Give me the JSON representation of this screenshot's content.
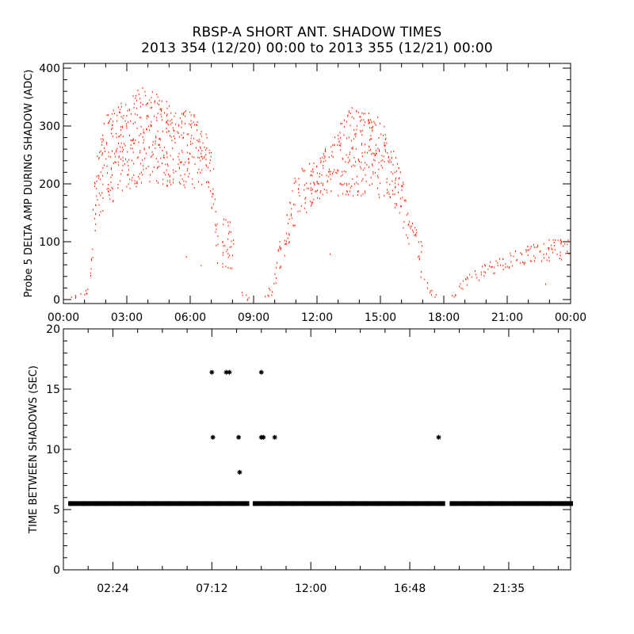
{
  "title": "RBSP-A SHORT ANT. SHADOW TIMES",
  "subtitle": "2013 354 (12/20) 00:00 to 2013 355 (12/21) 00:00",
  "colors": {
    "scatter": "#ff2200",
    "markers": "#000000",
    "axes": "#000000"
  },
  "chart_data": [
    {
      "type": "scatter",
      "ylabel": "Probe 5 DELTA AMP DURING SHADOW (ADC)",
      "xlabel": "",
      "xlim_hours": [
        0,
        24
      ],
      "ylim": [
        0,
        400
      ],
      "x_tick_labels": [
        "00:00",
        "03:00",
        "06:00",
        "09:00",
        "12:00",
        "15:00",
        "18:00",
        "21:00",
        "00:00"
      ],
      "x_tick_hours": [
        0,
        3,
        6,
        9,
        12,
        15,
        18,
        21,
        24
      ],
      "y_tick_labels": [
        "0",
        "100",
        "200",
        "300",
        "400"
      ],
      "y_tick_values": [
        0,
        100,
        200,
        300,
        400
      ],
      "grid": false,
      "segments": [
        [
          [
            0.3,
            0,
            5
          ],
          [
            0.7,
            3,
            10
          ],
          [
            1.2,
            10,
            22
          ]
        ],
        [
          [
            1.25,
            15,
            60
          ],
          [
            1.4,
            60,
            180
          ],
          [
            1.55,
            140,
            250
          ],
          [
            2.0,
            160,
            320
          ],
          [
            3.0,
            190,
            350
          ],
          [
            3.8,
            200,
            375
          ],
          [
            5.0,
            195,
            340
          ],
          [
            6.0,
            195,
            330
          ],
          [
            6.8,
            190,
            300
          ],
          [
            7.1,
            130,
            230
          ],
          [
            7.3,
            50,
            120
          ]
        ],
        [
          [
            7.5,
            50,
            140
          ],
          [
            7.8,
            45,
            155
          ],
          [
            8.05,
            60,
            110
          ]
        ],
        [
          [
            8.4,
            0,
            15
          ],
          [
            8.85,
            0,
            12
          ]
        ],
        [
          [
            9.4,
            0,
            5
          ],
          [
            9.9,
            10,
            30
          ],
          [
            10.2,
            50,
            100
          ],
          [
            10.6,
            90,
            170
          ],
          [
            11.0,
            130,
            220
          ],
          [
            12.0,
            175,
            250
          ],
          [
            13.0,
            180,
            300
          ],
          [
            13.6,
            180,
            335
          ],
          [
            14.5,
            180,
            330
          ],
          [
            15.3,
            170,
            300
          ],
          [
            15.8,
            150,
            250
          ],
          [
            16.3,
            100,
            160
          ],
          [
            16.8,
            60,
            110
          ],
          [
            17.0,
            40,
            95
          ]
        ],
        [
          [
            17.05,
            20,
            38
          ],
          [
            17.4,
            8,
            22
          ],
          [
            17.7,
            0,
            5
          ]
        ],
        [
          [
            18.3,
            0,
            5
          ],
          [
            19.0,
            20,
            40
          ],
          [
            20.0,
            40,
            65
          ],
          [
            21.0,
            55,
            80
          ],
          [
            22.0,
            62,
            95
          ],
          [
            23.0,
            68,
            105
          ],
          [
            24.0,
            65,
            105
          ]
        ]
      ],
      "isolated_points": [
        [
          2.1,
          200
        ],
        [
          5.8,
          75
        ],
        [
          6.5,
          60
        ],
        [
          12.6,
          80
        ],
        [
          16.9,
          40
        ],
        [
          22.8,
          28
        ]
      ]
    },
    {
      "type": "scatter",
      "ylabel": "TIME BETWEEN SHADOWS (SEC)",
      "xlabel": "",
      "xlim_hours": [
        0,
        24.6
      ],
      "ylim": [
        0,
        20
      ],
      "x_tick_labels": [
        "02:24",
        "07:12",
        "12:00",
        "16:48",
        "21:35"
      ],
      "x_tick_positions_hours": [
        2.4,
        7.2,
        12.0,
        16.8,
        21.6
      ],
      "y_tick_labels": [
        "0",
        "5",
        "10",
        "15",
        "20"
      ],
      "y_tick_values": [
        0,
        5,
        10,
        15,
        20
      ],
      "grid": false,
      "marker": "asterisk",
      "baseline_value": 5.5,
      "baseline_ranges_hours": [
        [
          0.35,
          8.9
        ],
        [
          9.3,
          18.4
        ],
        [
          18.85,
          24.6
        ]
      ],
      "outliers": [
        [
          7.2,
          16.4
        ],
        [
          7.25,
          11.0
        ],
        [
          7.9,
          16.4
        ],
        [
          8.05,
          16.4
        ],
        [
          8.5,
          11.0
        ],
        [
          8.55,
          8.1
        ],
        [
          9.6,
          16.4
        ],
        [
          9.6,
          11.0
        ],
        [
          9.7,
          11.0
        ],
        [
          10.25,
          11.0
        ],
        [
          18.2,
          11.0
        ]
      ]
    }
  ]
}
